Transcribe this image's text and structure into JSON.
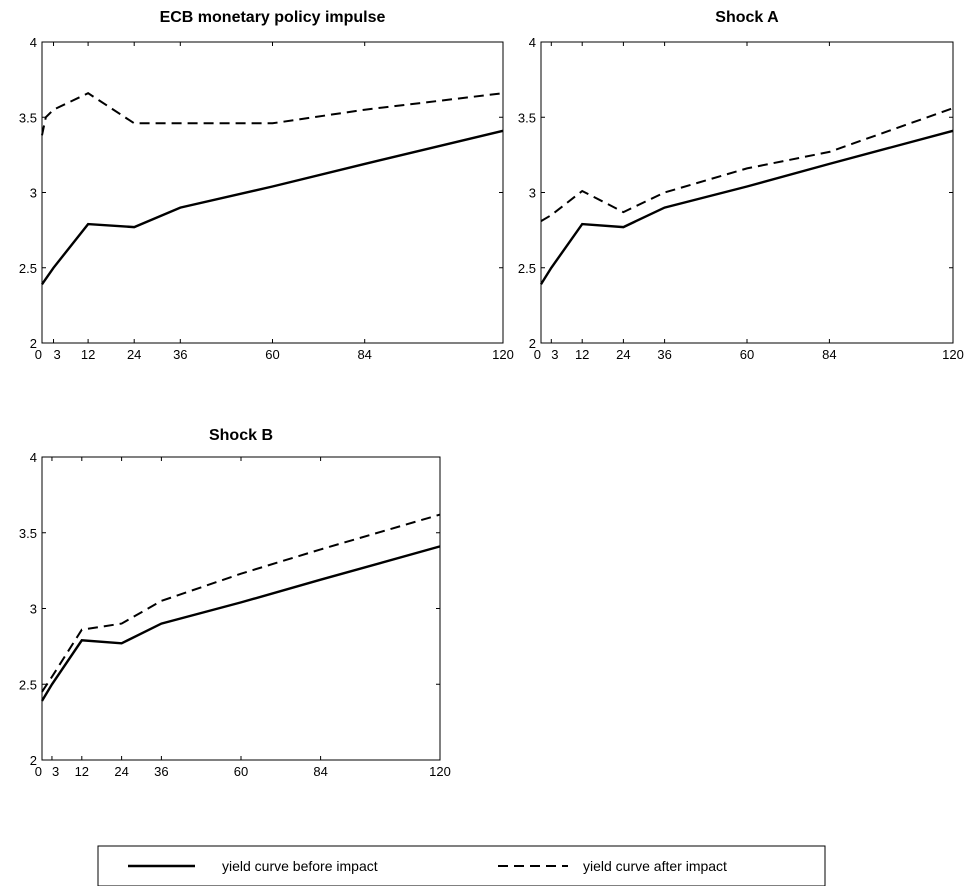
{
  "chart_data": [
    {
      "type": "line",
      "title": "ECB monetary policy impulse",
      "xlabel": "",
      "ylabel": "",
      "xlim": [
        0,
        120
      ],
      "ylim": [
        2,
        4
      ],
      "xticks": [
        0,
        3,
        12,
        24,
        36,
        60,
        84,
        120
      ],
      "yticks": [
        2,
        2.5,
        3,
        3.5,
        4
      ],
      "series": [
        {
          "name": "yield curve before impact",
          "style": "solid",
          "x": [
            0,
            3,
            12,
            24,
            36,
            60,
            84,
            120
          ],
          "y": [
            2.39,
            2.5,
            2.79,
            2.77,
            2.9,
            3.04,
            3.19,
            3.41
          ]
        },
        {
          "name": "yield curve after impact",
          "style": "dashed",
          "x": [
            0,
            1,
            3,
            12,
            24,
            36,
            60,
            84,
            120
          ],
          "y": [
            3.38,
            3.5,
            3.55,
            3.66,
            3.46,
            3.46,
            3.46,
            3.55,
            3.66
          ]
        }
      ]
    },
    {
      "type": "line",
      "title": "Shock A",
      "xlabel": "",
      "ylabel": "",
      "xlim": [
        0,
        120
      ],
      "ylim": [
        2,
        4
      ],
      "xticks": [
        0,
        3,
        12,
        24,
        36,
        60,
        84,
        120
      ],
      "yticks": [
        2,
        2.5,
        3,
        3.5,
        4
      ],
      "series": [
        {
          "name": "yield curve before impact",
          "style": "solid",
          "x": [
            0,
            3,
            12,
            24,
            36,
            60,
            84,
            120
          ],
          "y": [
            2.39,
            2.5,
            2.79,
            2.77,
            2.9,
            3.04,
            3.19,
            3.41
          ]
        },
        {
          "name": "yield curve after impact",
          "style": "dashed",
          "x": [
            0,
            3,
            12,
            24,
            36,
            60,
            84,
            120
          ],
          "y": [
            2.81,
            2.85,
            3.01,
            2.87,
            3.0,
            3.16,
            3.27,
            3.56
          ]
        }
      ]
    },
    {
      "type": "line",
      "title": "Shock B",
      "xlabel": "",
      "ylabel": "",
      "xlim": [
        0,
        120
      ],
      "ylim": [
        2,
        4
      ],
      "xticks": [
        0,
        3,
        12,
        24,
        36,
        60,
        84,
        120
      ],
      "yticks": [
        2,
        2.5,
        3,
        3.5,
        4
      ],
      "series": [
        {
          "name": "yield curve before impact",
          "style": "solid",
          "x": [
            0,
            3,
            12,
            24,
            36,
            60,
            84,
            120
          ],
          "y": [
            2.39,
            2.5,
            2.79,
            2.77,
            2.9,
            3.04,
            3.19,
            3.41
          ]
        },
        {
          "name": "yield curve after impact",
          "style": "dashed",
          "x": [
            0,
            3,
            12,
            24,
            36,
            60,
            84,
            120
          ],
          "y": [
            2.45,
            2.55,
            2.86,
            2.9,
            3.05,
            3.23,
            3.39,
            3.62
          ]
        }
      ]
    }
  ],
  "legend": {
    "placement": "bottom-center",
    "items": [
      {
        "label": "yield curve before impact",
        "style": "solid"
      },
      {
        "label": "yield curve after impact",
        "style": "dashed"
      }
    ]
  }
}
